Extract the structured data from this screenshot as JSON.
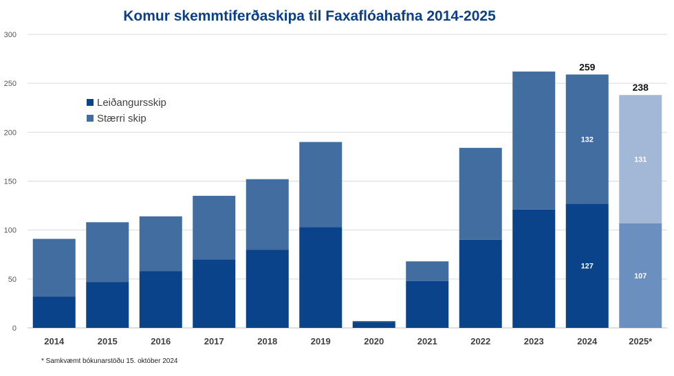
{
  "chart_data": {
    "type": "bar",
    "stacked": true,
    "title": "Komur skemmtiferðaskipa til Faxaflóahafna 2014-2025",
    "categories": [
      "2014",
      "2015",
      "2016",
      "2017",
      "2018",
      "2019",
      "2020",
      "2021",
      "2022",
      "2023",
      "2024",
      "2025*"
    ],
    "series": [
      {
        "name": "Leiðangursskip",
        "color": "#0b438a",
        "values": [
          32,
          47,
          58,
          70,
          80,
          103,
          6,
          48,
          90,
          121,
          127,
          107
        ]
      },
      {
        "name": "Stærri skip",
        "color": "#426da0",
        "values": [
          59,
          61,
          56,
          65,
          72,
          87,
          1,
          20,
          94,
          141,
          132,
          131
        ]
      }
    ],
    "forecast": {
      "category": "2025*",
      "colors": [
        "#6b90bf",
        "#a3b8d6"
      ]
    },
    "totals": [
      {
        "category": "2024",
        "label": "259"
      },
      {
        "category": "2025*",
        "label": "238"
      }
    ],
    "segment_labels": [
      {
        "category": "2024",
        "series": "Leiðangursskip",
        "label": "127"
      },
      {
        "category": "2024",
        "series": "Stærri skip",
        "label": "132"
      },
      {
        "category": "2025*",
        "series": "Leiðangursskip",
        "label": "107"
      },
      {
        "category": "2025*",
        "series": "Stærri skip",
        "label": "131"
      }
    ],
    "ylim": [
      0,
      300
    ],
    "yticks": [
      "0",
      "50",
      "100",
      "150",
      "200",
      "250",
      "300"
    ],
    "grid": true,
    "legend_position": "top-left"
  },
  "footnote": "* Samkvæmt bókunarstöðu  15. október 2024"
}
